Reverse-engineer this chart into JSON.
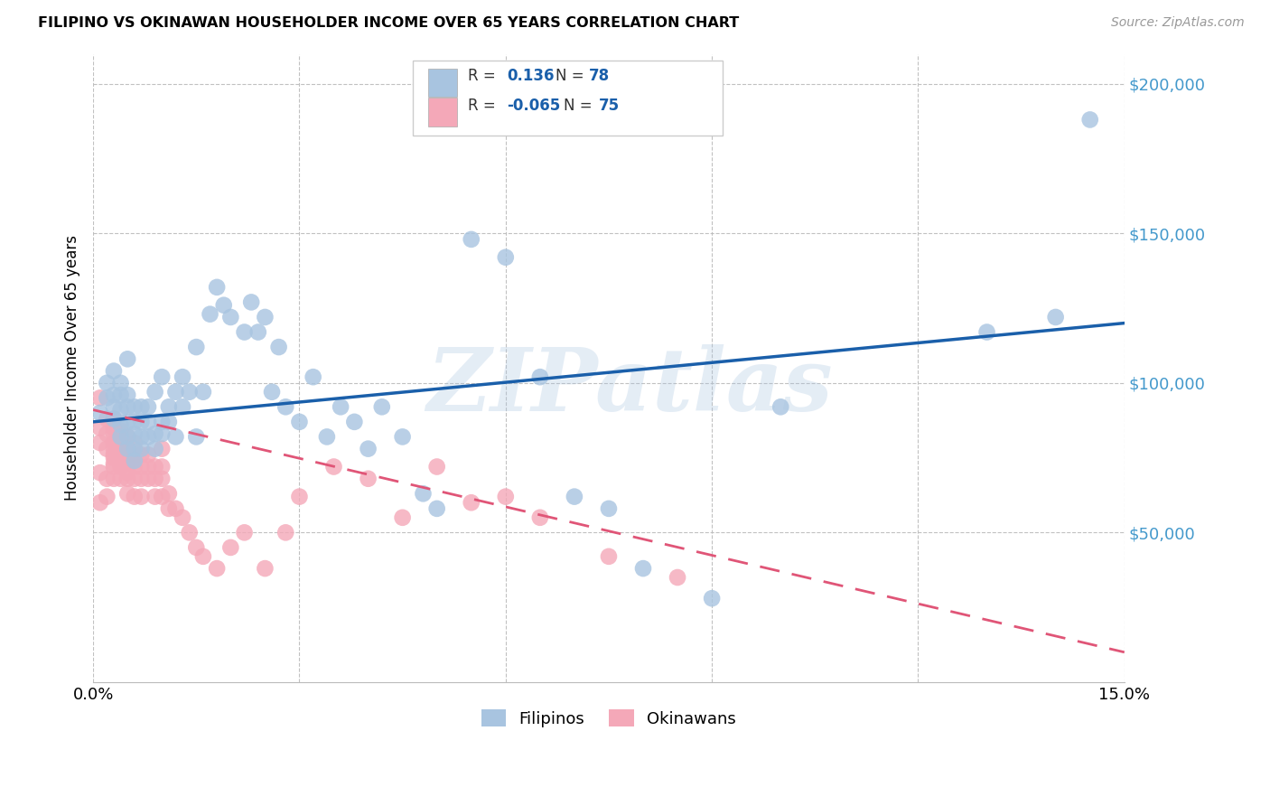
{
  "title": "FILIPINO VS OKINAWAN HOUSEHOLDER INCOME OVER 65 YEARS CORRELATION CHART",
  "source": "Source: ZipAtlas.com",
  "ylabel": "Householder Income Over 65 years",
  "xlim": [
    0,
    0.15
  ],
  "ylim": [
    0,
    210000
  ],
  "yticks": [
    50000,
    100000,
    150000,
    200000
  ],
  "ytick_labels": [
    "$50,000",
    "$100,000",
    "$150,000",
    "$200,000"
  ],
  "xticks": [
    0.0,
    0.03,
    0.06,
    0.09,
    0.12,
    0.15
  ],
  "xtick_labels": [
    "0.0%",
    "",
    "",
    "",
    "",
    "15.0%"
  ],
  "filipino_color": "#a8c4e0",
  "okinawan_color": "#f4a8b8",
  "filipino_line_color": "#1a5faa",
  "okinawan_line_color": "#e05577",
  "watermark": "ZIPatlas",
  "filipino_x": [
    0.001,
    0.002,
    0.002,
    0.003,
    0.003,
    0.003,
    0.003,
    0.004,
    0.004,
    0.004,
    0.004,
    0.004,
    0.005,
    0.005,
    0.005,
    0.005,
    0.005,
    0.005,
    0.006,
    0.006,
    0.006,
    0.006,
    0.006,
    0.007,
    0.007,
    0.007,
    0.007,
    0.008,
    0.008,
    0.008,
    0.009,
    0.009,
    0.009,
    0.01,
    0.01,
    0.01,
    0.011,
    0.011,
    0.012,
    0.012,
    0.013,
    0.013,
    0.014,
    0.015,
    0.015,
    0.016,
    0.017,
    0.018,
    0.019,
    0.02,
    0.022,
    0.023,
    0.024,
    0.025,
    0.026,
    0.027,
    0.028,
    0.03,
    0.032,
    0.034,
    0.036,
    0.038,
    0.04,
    0.042,
    0.045,
    0.048,
    0.05,
    0.055,
    0.06,
    0.065,
    0.07,
    0.075,
    0.08,
    0.09,
    0.1,
    0.13,
    0.14,
    0.145
  ],
  "filipino_y": [
    90000,
    95000,
    100000,
    88000,
    92000,
    96000,
    104000,
    82000,
    86000,
    91000,
    96000,
    100000,
    78000,
    82000,
    87000,
    92000,
    96000,
    108000,
    74000,
    78000,
    83000,
    87000,
    92000,
    78000,
    82000,
    87000,
    92000,
    82000,
    87000,
    92000,
    78000,
    83000,
    97000,
    83000,
    87000,
    102000,
    87000,
    92000,
    82000,
    97000,
    92000,
    102000,
    97000,
    82000,
    112000,
    97000,
    123000,
    132000,
    126000,
    122000,
    117000,
    127000,
    117000,
    122000,
    97000,
    112000,
    92000,
    87000,
    102000,
    82000,
    92000,
    87000,
    78000,
    92000,
    82000,
    63000,
    58000,
    148000,
    142000,
    102000,
    62000,
    58000,
    38000,
    28000,
    92000,
    117000,
    122000,
    188000
  ],
  "okinawan_x": [
    0.001,
    0.001,
    0.001,
    0.001,
    0.001,
    0.002,
    0.002,
    0.002,
    0.002,
    0.002,
    0.003,
    0.003,
    0.003,
    0.003,
    0.003,
    0.003,
    0.003,
    0.003,
    0.003,
    0.003,
    0.004,
    0.004,
    0.004,
    0.004,
    0.004,
    0.004,
    0.004,
    0.005,
    0.005,
    0.005,
    0.005,
    0.005,
    0.005,
    0.005,
    0.006,
    0.006,
    0.006,
    0.006,
    0.006,
    0.007,
    0.007,
    0.007,
    0.007,
    0.008,
    0.008,
    0.008,
    0.009,
    0.009,
    0.009,
    0.01,
    0.01,
    0.01,
    0.01,
    0.011,
    0.011,
    0.012,
    0.013,
    0.014,
    0.015,
    0.016,
    0.018,
    0.02,
    0.022,
    0.025,
    0.028,
    0.03,
    0.035,
    0.04,
    0.045,
    0.05,
    0.055,
    0.06,
    0.065,
    0.075,
    0.085
  ],
  "okinawan_y": [
    95000,
    80000,
    85000,
    60000,
    70000,
    78000,
    83000,
    88000,
    62000,
    68000,
    72000,
    76000,
    80000,
    85000,
    88000,
    78000,
    73000,
    68000,
    83000,
    75000,
    72000,
    76000,
    80000,
    84000,
    68000,
    73000,
    78000,
    68000,
    73000,
    78000,
    82000,
    63000,
    70000,
    76000,
    68000,
    72000,
    76000,
    80000,
    62000,
    68000,
    72000,
    76000,
    62000,
    68000,
    72000,
    76000,
    62000,
    68000,
    72000,
    62000,
    68000,
    72000,
    78000,
    58000,
    63000,
    58000,
    55000,
    50000,
    45000,
    42000,
    38000,
    45000,
    50000,
    38000,
    50000,
    62000,
    72000,
    68000,
    55000,
    72000,
    60000,
    62000,
    55000,
    42000,
    35000
  ],
  "fil_line_x0": 0.0,
  "fil_line_y0": 87000,
  "fil_line_x1": 0.15,
  "fil_line_y1": 120000,
  "oki_line_x0": 0.0,
  "oki_line_y0": 91000,
  "oki_line_x1": 0.15,
  "oki_line_y1": 10000
}
